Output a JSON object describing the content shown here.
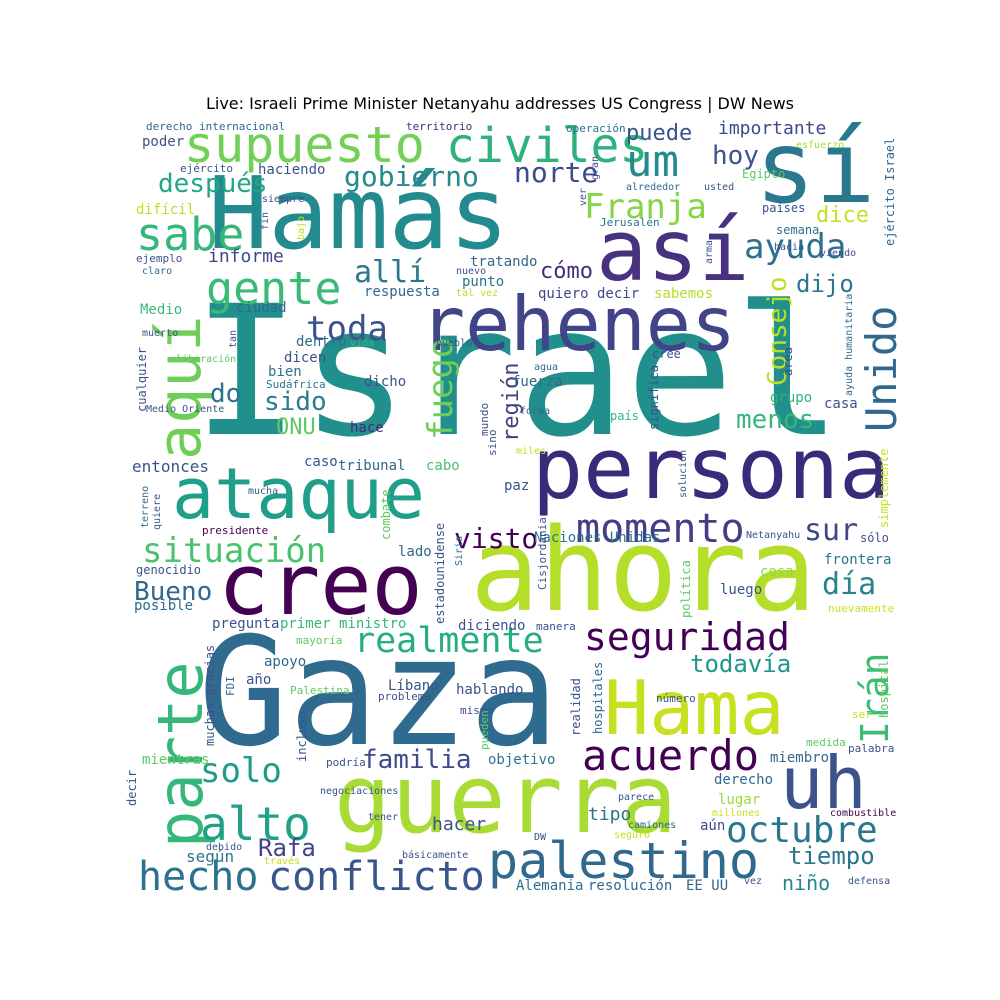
{
  "title": "Live: Israeli Prime Minister Netanyahu addresses US Congress | DW News",
  "chart_data": {
    "type": "wordcloud",
    "colormap": "viridis",
    "words": [
      {
        "text": "Israel",
        "color": "#21908c"
      },
      {
        "text": "Gaza",
        "color": "#2e6b8e"
      },
      {
        "text": "ahora",
        "color": "#b5de2b"
      },
      {
        "text": "Hamás",
        "color": "#238a8d"
      },
      {
        "text": "guerra",
        "color": "#a8db34"
      },
      {
        "text": "sí",
        "color": "#2a788e"
      },
      {
        "text": "persona",
        "color": "#3b2a79"
      },
      {
        "text": "creo",
        "color": "#440154"
      },
      {
        "text": "rehenes",
        "color": "#414487"
      },
      {
        "text": "Hama",
        "color": "#c7e020"
      },
      {
        "text": "así",
        "color": "#46327e"
      },
      {
        "text": "ataque",
        "color": "#1f9e89"
      },
      {
        "text": "parte",
        "color": "#35b779"
      },
      {
        "text": "uh",
        "color": "#3b528b"
      },
      {
        "text": "supuesto",
        "color": "#73d056"
      },
      {
        "text": "aquí",
        "color": "#6ece58"
      },
      {
        "text": "palestino",
        "color": "#31688e"
      },
      {
        "text": "civiles",
        "color": "#2db27d"
      },
      {
        "text": "sabe",
        "color": "#35b779"
      },
      {
        "text": "gente",
        "color": "#3aba76"
      },
      {
        "text": "momento",
        "color": "#433e85"
      },
      {
        "text": "hecho",
        "color": "#2c728e"
      },
      {
        "text": "conflicto",
        "color": "#39568c"
      },
      {
        "text": "alto",
        "color": "#1fa187"
      },
      {
        "text": "acuerdo",
        "color": "#440154"
      },
      {
        "text": "seguridad",
        "color": "#440154"
      },
      {
        "text": "Unido",
        "color": "#31688e"
      },
      {
        "text": "um",
        "color": "#228c8d"
      },
      {
        "text": "octubre",
        "color": "#2a768e"
      },
      {
        "text": "realmente",
        "color": "#26ad81"
      },
      {
        "text": "Irán",
        "color": "#3dbc74"
      },
      {
        "text": "ayuda",
        "color": "#2d708e"
      },
      {
        "text": "situación",
        "color": "#4ac16d"
      },
      {
        "text": "fuego",
        "color": "#6ece58"
      },
      {
        "text": "solo",
        "color": "#1e9c89"
      },
      {
        "text": "Franja",
        "color": "#86d549"
      },
      {
        "text": "toda",
        "color": "#3b528b"
      },
      {
        "text": "allí",
        "color": "#2a788e"
      },
      {
        "text": "Consejo",
        "color": "#bddf26"
      },
      {
        "text": "gobierno",
        "color": "#238a8d"
      },
      {
        "text": "norte",
        "color": "#3e4a89"
      },
      {
        "text": "después",
        "color": "#22a785"
      },
      {
        "text": "visto",
        "color": "#440154"
      },
      {
        "text": "día",
        "color": "#25848e"
      },
      {
        "text": "sur",
        "color": "#3e4989"
      },
      {
        "text": "todavía",
        "color": "#1f968b"
      },
      {
        "text": "familia",
        "color": "#3e4a89"
      },
      {
        "text": "Bueno",
        "color": "#31688e"
      },
      {
        "text": "Rafa",
        "color": "#414487"
      },
      {
        "text": "tiempo",
        "color": "#2b758e"
      },
      {
        "text": "hoy",
        "color": "#3b528b"
      },
      {
        "text": "puede",
        "color": "#3b528b"
      },
      {
        "text": "importante",
        "color": "#3e4a89"
      },
      {
        "text": "dice",
        "color": "#c8e020"
      },
      {
        "text": "dijo",
        "color": "#2a788e"
      },
      {
        "text": "cómo",
        "color": "#472d7b"
      },
      {
        "text": "menos",
        "color": "#35b779"
      },
      {
        "text": "sido",
        "color": "#287d8e"
      },
      {
        "text": "do",
        "color": "#2c728e"
      },
      {
        "text": "ONU",
        "color": "#5ec962"
      },
      {
        "text": "región",
        "color": "#433e85"
      },
      {
        "text": "entonces",
        "color": "#3b528b"
      },
      {
        "text": "informe",
        "color": "#3e4989"
      },
      {
        "text": "niño",
        "color": "#25848e"
      },
      {
        "text": "hacer",
        "color": "#3b528b"
      },
      {
        "text": "según",
        "color": "#2a788e"
      },
      {
        "text": "tipo",
        "color": "#2c728e"
      },
      {
        "text": "derecho",
        "color": "#31688e"
      },
      {
        "text": "lugar",
        "color": "#a0da39"
      },
      {
        "text": "aún",
        "color": "#3e4a89"
      },
      {
        "text": "luego",
        "color": "#3b528b"
      },
      {
        "text": "cosa",
        "color": "#90d743"
      },
      {
        "text": "frontera",
        "color": "#2a788e"
      },
      {
        "text": "casa",
        "color": "#3b528b"
      },
      {
        "text": "grupo",
        "color": "#2db27d"
      },
      {
        "text": "tratando",
        "color": "#31688e"
      },
      {
        "text": "respuesta",
        "color": "#31688e"
      },
      {
        "text": "quiero decir",
        "color": "#3e4989"
      },
      {
        "text": "punto",
        "color": "#2c728e"
      },
      {
        "text": "sabemos",
        "color": "#b5de2b"
      },
      {
        "text": "haciendo",
        "color": "#3b528b"
      },
      {
        "text": "poder",
        "color": "#3b528b"
      },
      {
        "text": "difícil",
        "color": "#bddf26"
      },
      {
        "text": "ciudad",
        "color": "#31688e"
      },
      {
        "text": "Medio",
        "color": "#3dbc74"
      },
      {
        "text": "dentro",
        "color": "#31688e"
      },
      {
        "text": "dicen",
        "color": "#3b528b"
      },
      {
        "text": "bien",
        "color": "#2c728e"
      },
      {
        "text": "dicho",
        "color": "#3b528b"
      },
      {
        "text": "fuerza",
        "color": "#31688e"
      },
      {
        "text": "hace",
        "color": "#482878"
      },
      {
        "text": "caso",
        "color": "#3b528b"
      },
      {
        "text": "tribunal",
        "color": "#31688e"
      },
      {
        "text": "cabo",
        "color": "#4ac16d"
      },
      {
        "text": "paz",
        "color": "#3b528b"
      },
      {
        "text": "Naciones Unidas",
        "color": "#2c728e"
      },
      {
        "text": "lado",
        "color": "#31688e"
      },
      {
        "text": "pregunta",
        "color": "#3b528b"
      },
      {
        "text": "primer ministro",
        "color": "#35b779"
      },
      {
        "text": "diciendo",
        "color": "#3b528b"
      },
      {
        "text": "apoyo",
        "color": "#31688e"
      },
      {
        "text": "Líbano",
        "color": "#3b528b"
      },
      {
        "text": "hablando",
        "color": "#3b528b"
      },
      {
        "text": "objetivo",
        "color": "#2c728e"
      },
      {
        "text": "mientras",
        "color": "#5ec962"
      },
      {
        "text": "posible",
        "color": "#31688e"
      },
      {
        "text": "año",
        "color": "#3b528b"
      },
      {
        "text": "Alemania",
        "color": "#2c728e"
      },
      {
        "text": "resolución",
        "color": "#31688e"
      },
      {
        "text": "EE UU",
        "color": "#31688e"
      },
      {
        "text": "miembro",
        "color": "#31688e"
      },
      {
        "text": "Egipto",
        "color": "#5ec962"
      },
      {
        "text": "países",
        "color": "#3b528b"
      },
      {
        "text": "semana",
        "color": "#2c728e"
      },
      {
        "text": "cree",
        "color": "#3b528b"
      },
      {
        "text": "Sudáfrica",
        "color": "#2c728e"
      },
      {
        "text": "Medio Oriente",
        "color": "#3b528b"
      },
      {
        "text": "muerto",
        "color": "#3b528b"
      },
      {
        "text": "presidente",
        "color": "#440154"
      },
      {
        "text": "genocidio",
        "color": "#3b528b"
      },
      {
        "text": "mundo",
        "color": "#3b528b"
      },
      {
        "text": "forma",
        "color": "#31688e"
      },
      {
        "text": "ejemplo",
        "color": "#3b528b"
      },
      {
        "text": "claro",
        "color": "#31688e"
      },
      {
        "text": "siempre",
        "color": "#3b528b"
      },
      {
        "text": "ejército",
        "color": "#3b528b"
      },
      {
        "text": "ejército Israel",
        "color": "#31688e"
      },
      {
        "text": "alrededor",
        "color": "#31688e"
      },
      {
        "text": "usted",
        "color": "#3b528b"
      },
      {
        "text": "esfuerzo",
        "color": "#a0da39"
      },
      {
        "text": "derecho internacional",
        "color": "#31688e"
      },
      {
        "text": "territorio",
        "color": "#472d7b"
      },
      {
        "text": "operación",
        "color": "#2c728e"
      },
      {
        "text": "Jerusalén",
        "color": "#2c728e"
      },
      {
        "text": "hacia",
        "color": "#3b528b"
      },
      {
        "text": "viendo",
        "color": "#3b528b"
      },
      {
        "text": "nuevo",
        "color": "#3b528b"
      },
      {
        "text": "tal vez",
        "color": "#b5de2b"
      },
      {
        "text": "pueblo",
        "color": "#3b528b"
      },
      {
        "text": "agua",
        "color": "#31688e"
      },
      {
        "text": "vida",
        "color": "#35b779"
      },
      {
        "text": "liberación",
        "color": "#5ec962"
      },
      {
        "text": "cualquier",
        "color": "#3b528b"
      },
      {
        "text": "país",
        "color": "#35b779"
      },
      {
        "text": "área",
        "color": "#3b528b"
      },
      {
        "text": "ayuda humanitaria",
        "color": "#31688e"
      },
      {
        "text": "miles",
        "color": "#c8e020"
      },
      {
        "text": "sino",
        "color": "#3b528b"
      },
      {
        "text": "solución",
        "color": "#3b528b"
      },
      {
        "text": "significa",
        "color": "#3b528b"
      },
      {
        "text": "simplemente",
        "color": "#c8e020"
      },
      {
        "text": "mucha",
        "color": "#3b528b"
      },
      {
        "text": "quiere",
        "color": "#3b528b"
      },
      {
        "text": "terreno",
        "color": "#31688e"
      },
      {
        "text": "combate",
        "color": "#5ec962"
      },
      {
        "text": "estadounidense",
        "color": "#3b528b"
      },
      {
        "text": "Siria",
        "color": "#31688e"
      },
      {
        "text": "Cisjordania",
        "color": "#3b528b"
      },
      {
        "text": "Netanyahu",
        "color": "#3b528b"
      },
      {
        "text": "sólo",
        "color": "#3b528b"
      },
      {
        "text": "política",
        "color": "#5ec962"
      },
      {
        "text": "nuevamente",
        "color": "#c8e020"
      },
      {
        "text": "mayoría",
        "color": "#5ec962"
      },
      {
        "text": "muchas gracias",
        "color": "#3b528b"
      },
      {
        "text": "FDI",
        "color": "#31688e"
      },
      {
        "text": "Palestina",
        "color": "#5ec962"
      },
      {
        "text": "problema",
        "color": "#3b528b"
      },
      {
        "text": "mismo",
        "color": "#3b528b"
      },
      {
        "text": "número",
        "color": "#3b528b"
      },
      {
        "text": "realidad",
        "color": "#3b528b"
      },
      {
        "text": "hospitales",
        "color": "#31688e"
      },
      {
        "text": "pueden",
        "color": "#5ec962"
      },
      {
        "text": "incluso",
        "color": "#3b528b"
      },
      {
        "text": "podría",
        "color": "#3b528b"
      },
      {
        "text": "manera",
        "color": "#3b528b"
      },
      {
        "text": "ser",
        "color": "#c8e020"
      },
      {
        "text": "medida",
        "color": "#5ec962"
      },
      {
        "text": "palabra",
        "color": "#3b528b"
      },
      {
        "text": "hospital",
        "color": "#5ec962"
      },
      {
        "text": "combustible",
        "color": "#440154"
      },
      {
        "text": "decir",
        "color": "#3b528b"
      },
      {
        "text": "negociaciones",
        "color": "#3b528b"
      },
      {
        "text": "tener",
        "color": "#3b528b"
      },
      {
        "text": "parece",
        "color": "#3b528b"
      },
      {
        "text": "millones",
        "color": "#c8e020"
      },
      {
        "text": "camiones",
        "color": "#31688e"
      },
      {
        "text": "seguro",
        "color": "#c8e020"
      },
      {
        "text": "DW",
        "color": "#3b528b"
      },
      {
        "text": "debido",
        "color": "#3b528b"
      },
      {
        "text": "través",
        "color": "#c8e020"
      },
      {
        "text": "básicamente",
        "color": "#3b528b"
      },
      {
        "text": "vez",
        "color": "#3b528b"
      },
      {
        "text": "defensa",
        "color": "#3b528b"
      },
      {
        "text": "fin",
        "color": "#3b528b"
      },
      {
        "text": "bajo",
        "color": "#c8e020"
      },
      {
        "text": "ver",
        "color": "#3b528b"
      },
      {
        "text": "gran",
        "color": "#3b528b"
      },
      {
        "text": "arma",
        "color": "#3b528b"
      },
      {
        "text": "tan",
        "color": "#3b528b"
      }
    ]
  }
}
